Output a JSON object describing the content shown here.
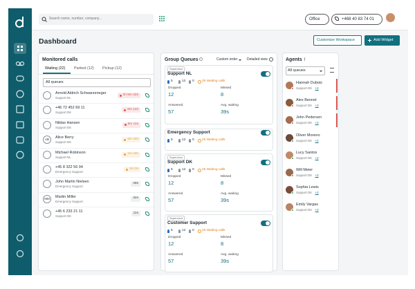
{
  "topbar": {
    "search_placeholder": "Search name, number, company...",
    "location": "Office",
    "phone_number": "+468 40 83 74 01"
  },
  "header": {
    "title": "Dashboard",
    "buttons": [
      "Customize Workspace",
      "Add Widget"
    ]
  },
  "monitored_calls": {
    "title": "Monitored calls",
    "tabs": [
      "Waiting (22)",
      "Parked (12)",
      "Pickup (12)"
    ],
    "filter": "All queues",
    "calls": [
      {
        "name": "Arnold Aldrich Schwarzeneger",
        "queue": "Support NL",
        "wait": "1h 5m 42s",
        "color": "#d9534f"
      },
      {
        "name": "+46 72 452 69 11",
        "queue": "Support DK",
        "wait": "6m 12s",
        "color": "#d9534f"
      },
      {
        "name": "Niklas Hansen",
        "queue": "Support DK",
        "wait": "5m 11s",
        "color": "#d9534f"
      },
      {
        "name": "Alice Berry",
        "queue": "Support DK",
        "wait": "3m 42s",
        "color": "#e8a23a",
        "initials": "AB"
      },
      {
        "name": "Michael Robinson",
        "queue": "Support NL",
        "wait": "1m 23s",
        "color": "#e8a23a"
      },
      {
        "name": "+45 8 322 56 94",
        "queue": "Emergency Support",
        "wait": "1m 3s",
        "color": "#e8a23a"
      },
      {
        "name": "John Martin Nielsen",
        "queue": "Emergency Support",
        "wait": "49s",
        "color": "#8a9499"
      },
      {
        "name": "Martin Miller",
        "queue": "Emergency Support",
        "wait": "32s",
        "color": "#8a9499",
        "initials": "MM"
      },
      {
        "name": "+45 6 233 21 11",
        "queue": "Support DK",
        "wait": "11s",
        "color": "#8a9499"
      }
    ]
  },
  "group_queues": {
    "title": "Group Queues",
    "sort": "Custom order",
    "view": "Detailed view",
    "queues": [
      {
        "supervisor": "Supervisor",
        "name": "Support NL",
        "members": 5,
        "calls": 12,
        "available": 0,
        "waiting": "25 Waiting calls",
        "stats": [
          {
            "label": "Dropped",
            "value": 12
          },
          {
            "label": "Missed",
            "value": 8
          },
          {
            "label": "Answered",
            "value": 57
          },
          {
            "label": "Avg. waiting",
            "value": "39s"
          }
        ]
      },
      {
        "name": "Emergency Support",
        "members": 5,
        "calls": 12,
        "available": 0,
        "waiting": "25 Waiting calls"
      },
      {
        "supervisor": "Supervisor",
        "name": "Support DK",
        "members": 5,
        "calls": 12,
        "available": 0,
        "waiting": "25 Waiting calls",
        "stats": [
          {
            "label": "Dropped",
            "value": 12
          },
          {
            "label": "Missed",
            "value": 8
          },
          {
            "label": "Answered",
            "value": 57
          },
          {
            "label": "Avg. waiting",
            "value": "39s"
          }
        ]
      },
      {
        "supervisor": "Supervisor",
        "name": "Customer Support",
        "members": 5,
        "calls": 12,
        "available": 0,
        "waiting": "25 Waiting calls",
        "stats": [
          {
            "label": "Dropped",
            "value": 12
          },
          {
            "label": "Missed",
            "value": 8
          },
          {
            "label": "Answered",
            "value": 57
          },
          {
            "label": "Avg. waiting",
            "value": "39s"
          }
        ]
      }
    ]
  },
  "agents": {
    "title": "Agents",
    "filter": "All queues",
    "list": [
      {
        "name": "Hannah Dubois",
        "queue": "Support DK",
        "extra": "+2",
        "status_color": "#d9534f"
      },
      {
        "name": "Alex Bennet",
        "queue": "Support DK",
        "extra": "+2",
        "status_color": "#d9534f"
      },
      {
        "name": "John Pedersen",
        "queue": "Support DK",
        "extra": "+2",
        "status_color": "#d9534f"
      },
      {
        "name": "Oliver Moreno",
        "queue": "Support DK",
        "extra": "+2"
      },
      {
        "name": "Lucy Santos",
        "queue": "Support DK",
        "extra": "+2"
      },
      {
        "name": "Will Meier",
        "queue": "Support DK",
        "extra": "+2"
      },
      {
        "name": "Sophia Lewis",
        "queue": "Support DK",
        "extra": "+2"
      },
      {
        "name": "Emily Vargas",
        "queue": "Support DK",
        "extra": "+2"
      }
    ]
  }
}
